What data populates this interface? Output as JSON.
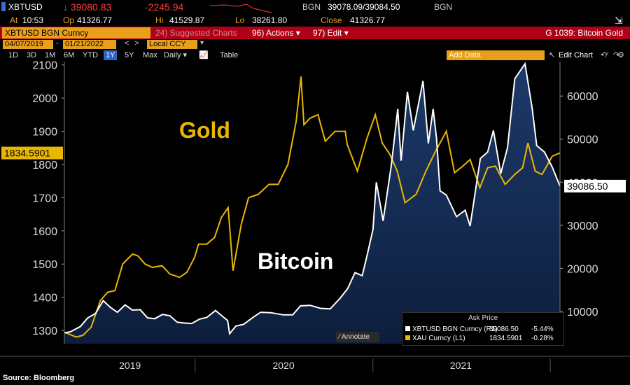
{
  "quote": {
    "ticker": "XBTUSD",
    "last": "↓ 39080.83",
    "change": "-2245.94",
    "source": "BGN",
    "bid_ask": "39078.09/39084.50",
    "source2": "BGN",
    "at_label": "At",
    "at_time": "10:53",
    "op_label": "Op",
    "op_value": "41326.77",
    "hi_label": "Hi",
    "hi_value": "41529.87",
    "lo_label": "Lo",
    "lo_value": "38261.80",
    "close_label": "Close",
    "close_value": "41326.77"
  },
  "menu": {
    "security": "XBTUSD BGN Curncy",
    "suggested": "24) Suggested Charts",
    "actions": "96) Actions ▾",
    "edit": "97) Edit ▾",
    "chart_name": "G 1039: Bitcoin Gold"
  },
  "dates": {
    "start": "04/07/2019",
    "end": "01/21/2022",
    "currency": "Local CCY"
  },
  "ranges": [
    "1D",
    "3D",
    "1M",
    "6M",
    "YTD",
    "1Y",
    "5Y",
    "Max"
  ],
  "selected_range": "1Y",
  "freq": "Daily ▾",
  "table_label": "Table",
  "add_data": "Add Data",
  "edit_chart": "Edit Chart",
  "annotate": "Annotate",
  "source_note": "Source: Bloomberg",
  "legend": {
    "header": "Ask Price",
    "rows": [
      {
        "name": "XBTUSD BGN Curncy (R1)",
        "value": "39086.50",
        "chg": "-5.44%",
        "color": "#ffffff"
      },
      {
        "name": "XAU Curncy (L1)",
        "value": "1834.5901",
        "chg": "-0.28%",
        "color": "#e8b800"
      }
    ]
  },
  "chart_data": {
    "type": "line",
    "title": "",
    "x_ticks": [
      "2019",
      "2020",
      "2021"
    ],
    "left_axis": {
      "ticks": [
        1300,
        1400,
        1500,
        1600,
        1700,
        1800,
        1900,
        2000,
        2100
      ],
      "ylim": [
        1260,
        2110
      ],
      "current": "1834.5901"
    },
    "right_axis": {
      "ticks": [
        "10000",
        "20000",
        "30000",
        "40000",
        "50000",
        "60000"
      ],
      "ylim": [
        2500,
        68000
      ],
      "current": "39086.50"
    },
    "annotations": [
      "Gold",
      "Bitcoin"
    ],
    "series": [
      {
        "name": "Gold",
        "axis": "left",
        "color": "#e8b800",
        "dates": [
          "2019-04-07",
          "2019-05-01",
          "2019-05-15",
          "2019-06-01",
          "2019-06-20",
          "2019-07-05",
          "2019-07-20",
          "2019-08-05",
          "2019-08-25",
          "2019-09-05",
          "2019-09-20",
          "2019-10-05",
          "2019-10-25",
          "2019-11-10",
          "2019-11-30",
          "2019-12-15",
          "2019-12-31",
          "2020-01-08",
          "2020-01-25",
          "2020-02-10",
          "2020-02-24",
          "2020-03-09",
          "2020-03-19",
          "2020-04-05",
          "2020-04-20",
          "2020-05-10",
          "2020-06-01",
          "2020-06-20",
          "2020-07-10",
          "2020-07-27",
          "2020-08-06",
          "2020-08-12",
          "2020-08-25",
          "2020-09-10",
          "2020-09-25",
          "2020-10-15",
          "2020-11-05",
          "2020-11-09",
          "2020-11-30",
          "2020-12-20",
          "2021-01-06",
          "2021-01-20",
          "2021-02-05",
          "2021-02-20",
          "2021-03-08",
          "2021-03-31",
          "2021-04-20",
          "2021-05-10",
          "2021-06-01",
          "2021-06-18",
          "2021-07-05",
          "2021-07-20",
          "2021-08-09",
          "2021-08-25",
          "2021-09-10",
          "2021-09-30",
          "2021-10-20",
          "2021-11-05",
          "2021-11-16",
          "2021-12-01",
          "2021-12-15",
          "2022-01-05",
          "2022-01-21"
        ],
        "values": [
          1295,
          1280,
          1285,
          1310,
          1390,
          1415,
          1420,
          1500,
          1530,
          1525,
          1500,
          1490,
          1495,
          1470,
          1460,
          1475,
          1520,
          1560,
          1560,
          1580,
          1640,
          1670,
          1480,
          1620,
          1700,
          1710,
          1740,
          1740,
          1800,
          1930,
          2065,
          1920,
          1940,
          1950,
          1870,
          1900,
          1900,
          1860,
          1780,
          1880,
          1950,
          1865,
          1830,
          1780,
          1685,
          1710,
          1780,
          1840,
          1900,
          1775,
          1795,
          1815,
          1730,
          1790,
          1795,
          1740,
          1770,
          1790,
          1865,
          1780,
          1770,
          1825,
          1835
        ]
      },
      {
        "name": "Bitcoin",
        "axis": "right",
        "color": "#ffffff",
        "dates": [
          "2019-04-07",
          "2019-04-20",
          "2019-05-10",
          "2019-05-25",
          "2019-06-10",
          "2019-06-26",
          "2019-07-10",
          "2019-07-25",
          "2019-08-10",
          "2019-08-25",
          "2019-09-10",
          "2019-09-25",
          "2019-10-10",
          "2019-10-26",
          "2019-11-10",
          "2019-11-25",
          "2019-12-10",
          "2019-12-25",
          "2020-01-10",
          "2020-01-25",
          "2020-02-12",
          "2020-02-28",
          "2020-03-08",
          "2020-03-12",
          "2020-03-25",
          "2020-04-10",
          "2020-04-30",
          "2020-05-15",
          "2020-06-05",
          "2020-06-30",
          "2020-07-20",
          "2020-08-05",
          "2020-08-25",
          "2020-09-15",
          "2020-10-05",
          "2020-10-25",
          "2020-11-10",
          "2020-11-25",
          "2020-12-10",
          "2020-12-20",
          "2021-01-01",
          "2021-01-08",
          "2021-01-22",
          "2021-02-08",
          "2021-02-21",
          "2021-02-28",
          "2021-03-13",
          "2021-03-25",
          "2021-04-14",
          "2021-04-25",
          "2021-05-05",
          "2021-05-12",
          "2021-05-19",
          "2021-06-01",
          "2021-06-22",
          "2021-07-10",
          "2021-07-20",
          "2021-08-10",
          "2021-08-25",
          "2021-09-06",
          "2021-09-21",
          "2021-10-05",
          "2021-10-20",
          "2021-11-10",
          "2021-11-25",
          "2021-12-04",
          "2021-12-20",
          "2022-01-05",
          "2022-01-21"
        ],
        "values": [
          5000,
          5300,
          6500,
          8500,
          9500,
          12500,
          11000,
          9800,
          11500,
          10300,
          10400,
          8500,
          8300,
          9300,
          9000,
          7500,
          7300,
          7200,
          8200,
          8600,
          10200,
          8700,
          7900,
          4800,
          6600,
          7000,
          8700,
          9800,
          9700,
          9200,
          9200,
          11300,
          11400,
          10700,
          10600,
          13000,
          15300,
          19000,
          18300,
          23000,
          29000,
          40000,
          31000,
          44000,
          57000,
          45000,
          61000,
          52000,
          63500,
          49000,
          57000,
          50000,
          38000,
          37000,
          32000,
          33500,
          29800,
          45500,
          47000,
          52000,
          42000,
          48000,
          64000,
          67500,
          57000,
          48500,
          47000,
          43500,
          39086
        ]
      }
    ]
  }
}
